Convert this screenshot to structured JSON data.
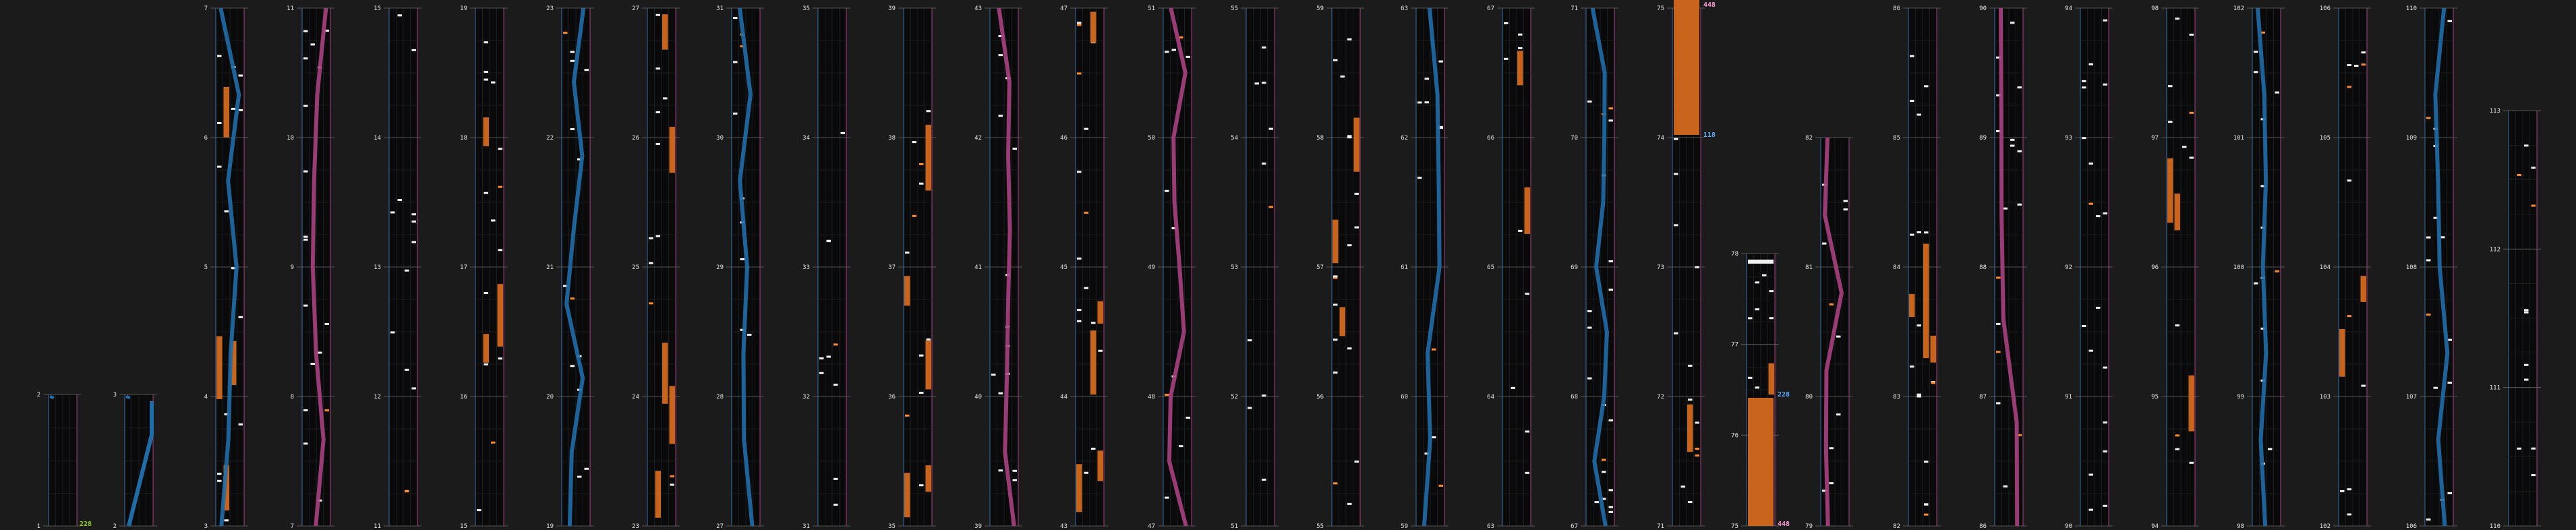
{
  "chart_view": {
    "columns": [
      {
        "measures": [
          1,
          2
        ]
      },
      {
        "measures": [
          2,
          3
        ]
      },
      {
        "measures": [
          3,
          4,
          5,
          6,
          7
        ]
      },
      {
        "measures": [
          7,
          8,
          9,
          10,
          11
        ]
      },
      {
        "measures": [
          11,
          12,
          13,
          14,
          15
        ]
      },
      {
        "measures": [
          15,
          16,
          17,
          18,
          19
        ]
      },
      {
        "measures": [
          19,
          20,
          21,
          22,
          23
        ]
      },
      {
        "measures": [
          23,
          24,
          25,
          26,
          27
        ]
      },
      {
        "measures": [
          27,
          28,
          29,
          30,
          31
        ]
      },
      {
        "measures": [
          31,
          32,
          33,
          34,
          35
        ]
      },
      {
        "measures": [
          35,
          36,
          37,
          38,
          39
        ]
      },
      {
        "measures": [
          39,
          40,
          41,
          42,
          43
        ]
      },
      {
        "measures": [
          43,
          44,
          45,
          46,
          47
        ]
      },
      {
        "measures": [
          47,
          48,
          49,
          50,
          51
        ]
      },
      {
        "measures": [
          51,
          52,
          53,
          54,
          55
        ]
      },
      {
        "measures": [
          55,
          56,
          57,
          58,
          59
        ]
      },
      {
        "measures": [
          59,
          60,
          61,
          62,
          63
        ]
      },
      {
        "measures": [
          63,
          64,
          65,
          66,
          67
        ]
      },
      {
        "measures": [
          67,
          68,
          69,
          70,
          71
        ]
      },
      {
        "measures": [
          71,
          72,
          73,
          74,
          75
        ]
      },
      {
        "measures": [
          75,
          76,
          77,
          78
        ]
      },
      {
        "measures": [
          79,
          80,
          81,
          82
        ]
      },
      {
        "measures": [
          82,
          83,
          84,
          85,
          86
        ]
      },
      {
        "measures": [
          86,
          87,
          88,
          89,
          90
        ]
      },
      {
        "measures": [
          90,
          91,
          92,
          93,
          94
        ]
      },
      {
        "measures": [
          94,
          95,
          96,
          97,
          98
        ]
      },
      {
        "measures": [
          98,
          99,
          100,
          101,
          102
        ]
      },
      {
        "measures": [
          102,
          103,
          104,
          105,
          106
        ]
      },
      {
        "measures": [
          106,
          107,
          108,
          109,
          110
        ]
      },
      {
        "measures": [
          110,
          111,
          112,
          113
        ]
      }
    ],
    "bpm_markers": [
      {
        "column": 0,
        "text": "228",
        "color": "#8fd400"
      },
      {
        "column": 19,
        "text": "448",
        "color": "#ff9ad5"
      },
      {
        "column": 19,
        "text": "118",
        "color": "#5aa8ff"
      },
      {
        "column": 20,
        "text": "228",
        "color": "#5aa8ff"
      },
      {
        "column": 20,
        "text": "448",
        "color": "#ff9ad5"
      }
    ],
    "colors": {
      "background": "#1b1b1b",
      "lane_bg": "#0a0a0a",
      "long_note": "#c8641c",
      "blue_stream": "#1f6da8",
      "pink_stream": "#a8407f",
      "lane_border_left": "#3a6ea8",
      "lane_border_right": "#a8407f",
      "note": "#f2f2f2",
      "orange_note": "#ff8a2a"
    }
  }
}
